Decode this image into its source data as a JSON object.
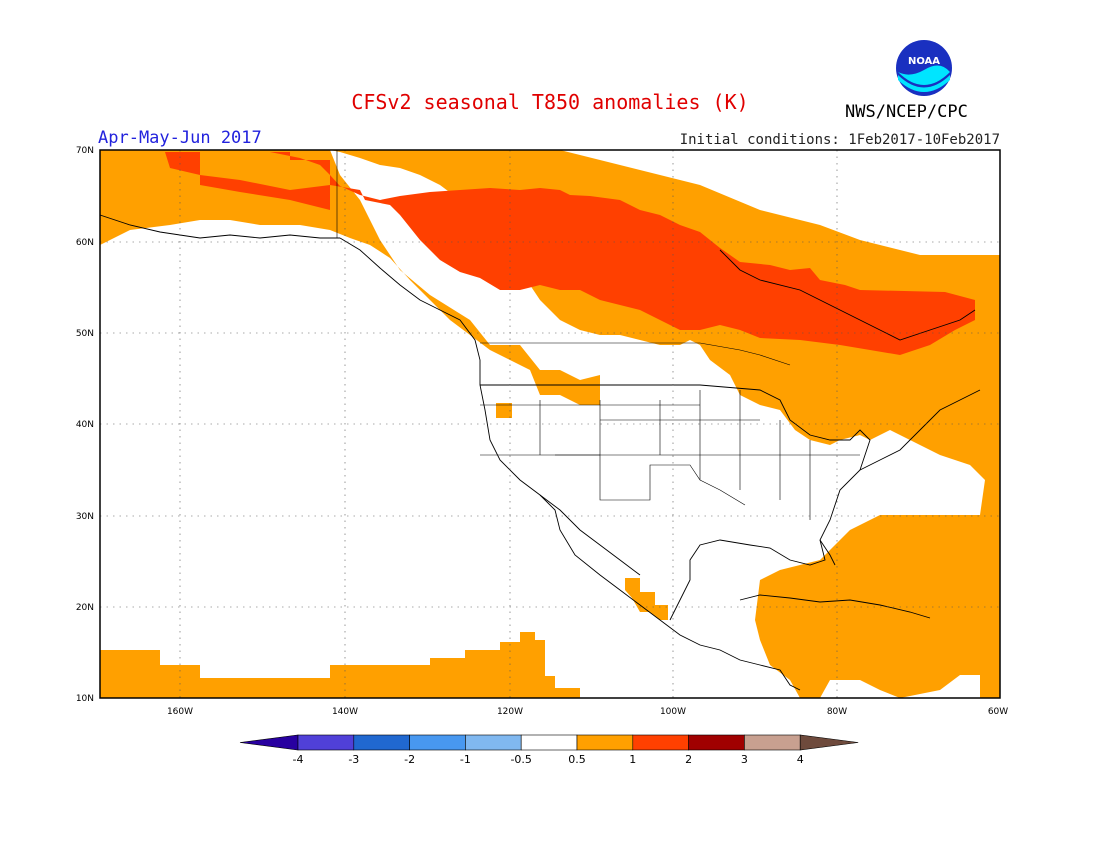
{
  "header": {
    "title": "CFSv2 seasonal T850 anomalies (K)",
    "title_color": "#e00000",
    "agency": "NWS/NCEP/CPC",
    "period": "Apr-May-Jun 2017",
    "period_color": "#2222dd",
    "initial_conditions": "Initial conditions: 1Feb2017-10Feb2017"
  },
  "logo": {
    "name": "noaa-logo",
    "text": "NOAA",
    "color": "#00e5ff"
  },
  "map": {
    "lat_labels": [
      "70N",
      "60N",
      "50N",
      "40N",
      "30N",
      "20N",
      "10N"
    ],
    "lon_labels": [
      "160W",
      "140W",
      "120W",
      "100W",
      "80W",
      "60W"
    ],
    "anomaly_colors": {
      "0.5-1": "#ffa000",
      "1-2": "#ff4000"
    }
  },
  "colorbar": {
    "labels": [
      "-4",
      "-3",
      "-2",
      "-1",
      "-0.5",
      "0.5",
      "1",
      "2",
      "3",
      "4"
    ],
    "colors": [
      "#2800a0",
      "#5040d8",
      "#2068d0",
      "#4898f0",
      "#80b8f0",
      "#ffffff",
      "#ffa000",
      "#ff4000",
      "#a00000",
      "#c8a090",
      "#6e4a3c"
    ]
  }
}
